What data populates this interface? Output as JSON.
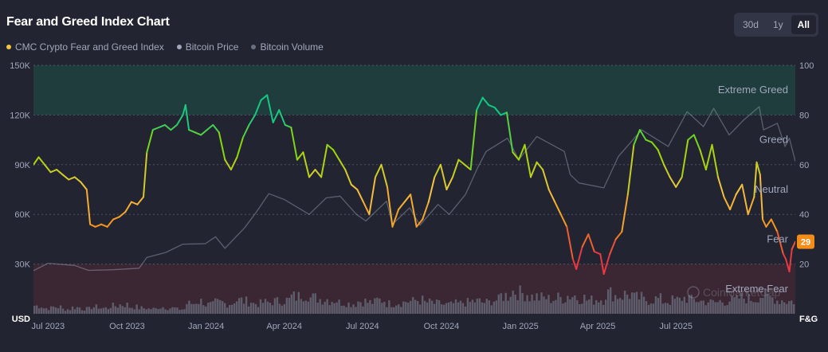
{
  "header": {
    "title": "Fear and Greed Index Chart",
    "ranges": [
      "30d",
      "1y",
      "All"
    ],
    "active_range": "All"
  },
  "legend": [
    {
      "label": "CMC Crypto Fear and Greed Index",
      "color": "#f6c343"
    },
    {
      "label": "Bitcoin Price",
      "color": "#a1a7bb"
    },
    {
      "label": "Bitcoin Volume",
      "color": "#6b7080"
    }
  ],
  "watermark": "CoinMarketCap",
  "current_value": 29,
  "chart_data": {
    "type": "line",
    "x_range": [
      "2023-06-14",
      "2025-11-17"
    ],
    "x_ticks": [
      {
        "date": "2023-07-01",
        "label": "Jul 2023"
      },
      {
        "date": "2023-10-01",
        "label": "Oct 2023"
      },
      {
        "date": "2024-01-01",
        "label": "Jan 2024"
      },
      {
        "date": "2024-04-01",
        "label": "Apr 2024"
      },
      {
        "date": "2024-07-01",
        "label": "Jul 2024"
      },
      {
        "date": "2024-10-01",
        "label": "Oct 2024"
      },
      {
        "date": "2025-01-01",
        "label": "Jan 2025"
      },
      {
        "date": "2025-04-01",
        "label": "Apr 2025"
      },
      {
        "date": "2025-07-01",
        "label": "Jul 2025"
      }
    ],
    "left_axis": {
      "unit": "USD",
      "ylim": [
        0,
        150000
      ],
      "ticks": [
        30000,
        60000,
        90000,
        120000,
        150000
      ],
      "tick_labels": [
        "30K",
        "60K",
        "90K",
        "120K",
        "150K"
      ]
    },
    "right_axis": {
      "unit": "F&G",
      "ylim": [
        0,
        100
      ],
      "ticks": [
        20,
        40,
        60,
        80,
        100
      ],
      "tick_labels": [
        "20",
        "40",
        "60",
        "80",
        "100"
      ]
    },
    "zones": [
      {
        "label": "Extreme Greed",
        "from": 80,
        "to": 100,
        "color": "#16c784"
      },
      {
        "label": "Greed",
        "at": 70
      },
      {
        "label": "Neutral",
        "at": 50
      },
      {
        "label": "Fear",
        "at": 30
      },
      {
        "label": "Extreme Fear",
        "from": 0,
        "to": 20,
        "color": "#ea3943"
      }
    ],
    "grid": true,
    "series": [
      {
        "name": "CMC Crypto Fear and Greed Index",
        "axis": "right",
        "points": [
          [
            "2023-06-14",
            60
          ],
          [
            "2023-06-20",
            63
          ],
          [
            "2023-06-27",
            60
          ],
          [
            "2023-07-04",
            57
          ],
          [
            "2023-07-11",
            58
          ],
          [
            "2023-07-18",
            56
          ],
          [
            "2023-07-25",
            54
          ],
          [
            "2023-08-01",
            55
          ],
          [
            "2023-08-08",
            53
          ],
          [
            "2023-08-15",
            50
          ],
          [
            "2023-08-19",
            36
          ],
          [
            "2023-08-25",
            35
          ],
          [
            "2023-09-01",
            36
          ],
          [
            "2023-09-08",
            35
          ],
          [
            "2023-09-15",
            38
          ],
          [
            "2023-09-22",
            39
          ],
          [
            "2023-09-29",
            41
          ],
          [
            "2023-10-06",
            45
          ],
          [
            "2023-10-13",
            44
          ],
          [
            "2023-10-20",
            47
          ],
          [
            "2023-10-24",
            65
          ],
          [
            "2023-10-31",
            74
          ],
          [
            "2023-11-07",
            75
          ],
          [
            "2023-11-14",
            76
          ],
          [
            "2023-11-21",
            74
          ],
          [
            "2023-11-28",
            76
          ],
          [
            "2023-12-05",
            80
          ],
          [
            "2023-12-08",
            84
          ],
          [
            "2023-12-12",
            74
          ],
          [
            "2023-12-19",
            73
          ],
          [
            "2023-12-26",
            72
          ],
          [
            "2024-01-02",
            74
          ],
          [
            "2024-01-09",
            76
          ],
          [
            "2024-01-16",
            73
          ],
          [
            "2024-01-23",
            62
          ],
          [
            "2024-01-30",
            58
          ],
          [
            "2024-02-06",
            63
          ],
          [
            "2024-02-13",
            71
          ],
          [
            "2024-02-20",
            76
          ],
          [
            "2024-02-27",
            80
          ],
          [
            "2024-03-05",
            86
          ],
          [
            "2024-03-12",
            88
          ],
          [
            "2024-03-19",
            77
          ],
          [
            "2024-03-26",
            82
          ],
          [
            "2024-04-02",
            76
          ],
          [
            "2024-04-09",
            75
          ],
          [
            "2024-04-16",
            62
          ],
          [
            "2024-04-23",
            65
          ],
          [
            "2024-04-30",
            55
          ],
          [
            "2024-05-07",
            58
          ],
          [
            "2024-05-14",
            55
          ],
          [
            "2024-05-21",
            68
          ],
          [
            "2024-05-28",
            66
          ],
          [
            "2024-06-04",
            62
          ],
          [
            "2024-06-11",
            58
          ],
          [
            "2024-06-18",
            52
          ],
          [
            "2024-06-25",
            50
          ],
          [
            "2024-07-02",
            45
          ],
          [
            "2024-07-09",
            40
          ],
          [
            "2024-07-16",
            55
          ],
          [
            "2024-07-23",
            60
          ],
          [
            "2024-07-30",
            51
          ],
          [
            "2024-08-05",
            35
          ],
          [
            "2024-08-12",
            42
          ],
          [
            "2024-08-19",
            45
          ],
          [
            "2024-08-26",
            48
          ],
          [
            "2024-09-02",
            35
          ],
          [
            "2024-09-09",
            38
          ],
          [
            "2024-09-16",
            45
          ],
          [
            "2024-09-23",
            55
          ],
          [
            "2024-09-30",
            60
          ],
          [
            "2024-10-07",
            50
          ],
          [
            "2024-10-14",
            55
          ],
          [
            "2024-10-21",
            62
          ],
          [
            "2024-10-28",
            60
          ],
          [
            "2024-11-04",
            58
          ],
          [
            "2024-11-11",
            82
          ],
          [
            "2024-11-18",
            87
          ],
          [
            "2024-11-25",
            84
          ],
          [
            "2024-12-02",
            83
          ],
          [
            "2024-12-09",
            80
          ],
          [
            "2024-12-16",
            81
          ],
          [
            "2024-12-23",
            65
          ],
          [
            "2024-12-30",
            62
          ],
          [
            "2025-01-06",
            68
          ],
          [
            "2025-01-13",
            55
          ],
          [
            "2025-01-20",
            61
          ],
          [
            "2025-01-27",
            58
          ],
          [
            "2025-02-03",
            50
          ],
          [
            "2025-02-10",
            45
          ],
          [
            "2025-02-17",
            40
          ],
          [
            "2025-02-24",
            35
          ],
          [
            "2025-03-03",
            22
          ],
          [
            "2025-03-07",
            18
          ],
          [
            "2025-03-14",
            27
          ],
          [
            "2025-03-21",
            32
          ],
          [
            "2025-03-28",
            25
          ],
          [
            "2025-04-04",
            24
          ],
          [
            "2025-04-08",
            16
          ],
          [
            "2025-04-15",
            24
          ],
          [
            "2025-04-22",
            30
          ],
          [
            "2025-04-29",
            33
          ],
          [
            "2025-05-06",
            48
          ],
          [
            "2025-05-13",
            68
          ],
          [
            "2025-05-20",
            74
          ],
          [
            "2025-05-27",
            70
          ],
          [
            "2025-06-03",
            69
          ],
          [
            "2025-06-10",
            66
          ],
          [
            "2025-06-17",
            60
          ],
          [
            "2025-06-24",
            55
          ],
          [
            "2025-07-01",
            51
          ],
          [
            "2025-07-08",
            55
          ],
          [
            "2025-07-15",
            70
          ],
          [
            "2025-07-22",
            72
          ],
          [
            "2025-07-29",
            66
          ],
          [
            "2025-08-05",
            58
          ],
          [
            "2025-08-12",
            68
          ],
          [
            "2025-08-19",
            55
          ],
          [
            "2025-08-26",
            47
          ],
          [
            "2025-09-02",
            42
          ],
          [
            "2025-09-09",
            48
          ],
          [
            "2025-09-16",
            52
          ],
          [
            "2025-09-23",
            40
          ],
          [
            "2025-09-30",
            47
          ],
          [
            "2025-10-03",
            61
          ],
          [
            "2025-10-07",
            56
          ],
          [
            "2025-10-10",
            38
          ],
          [
            "2025-10-14",
            35
          ],
          [
            "2025-10-20",
            38
          ],
          [
            "2025-10-27",
            33
          ],
          [
            "2025-11-03",
            24
          ],
          [
            "2025-11-06",
            22
          ],
          [
            "2025-11-10",
            17
          ],
          [
            "2025-11-13",
            26
          ],
          [
            "2025-11-17",
            29
          ]
        ]
      },
      {
        "name": "Bitcoin Price",
        "axis": "left",
        "color": "#a1a7bb",
        "points": [
          [
            "2023-06-14",
            26000
          ],
          [
            "2023-07-01",
            30500
          ],
          [
            "2023-08-01",
            29200
          ],
          [
            "2023-08-17",
            26200
          ],
          [
            "2023-09-15",
            26600
          ],
          [
            "2023-10-15",
            27500
          ],
          [
            "2023-10-24",
            34000
          ],
          [
            "2023-11-15",
            37000
          ],
          [
            "2023-12-05",
            42000
          ],
          [
            "2023-12-31",
            42300
          ],
          [
            "2024-01-12",
            46500
          ],
          [
            "2024-01-23",
            39500
          ],
          [
            "2024-02-15",
            52000
          ],
          [
            "2024-02-28",
            61000
          ],
          [
            "2024-03-14",
            72500
          ],
          [
            "2024-04-01",
            69000
          ],
          [
            "2024-04-30",
            60000
          ],
          [
            "2024-05-20",
            70000
          ],
          [
            "2024-06-05",
            71000
          ],
          [
            "2024-06-24",
            60000
          ],
          [
            "2024-07-05",
            56000
          ],
          [
            "2024-07-29",
            68000
          ],
          [
            "2024-08-05",
            54000
          ],
          [
            "2024-08-25",
            64000
          ],
          [
            "2024-09-06",
            53500
          ],
          [
            "2024-09-27",
            66000
          ],
          [
            "2024-10-10",
            60000
          ],
          [
            "2024-10-29",
            72000
          ],
          [
            "2024-11-12",
            88000
          ],
          [
            "2024-11-22",
            98000
          ],
          [
            "2024-12-17",
            106000
          ],
          [
            "2024-12-30",
            93000
          ],
          [
            "2025-01-20",
            107000
          ],
          [
            "2025-02-21",
            98000
          ],
          [
            "2025-02-28",
            84000
          ],
          [
            "2025-03-10",
            79000
          ],
          [
            "2025-04-08",
            76000
          ],
          [
            "2025-04-25",
            95000
          ],
          [
            "2025-05-22",
            111000
          ],
          [
            "2025-06-22",
            101000
          ],
          [
            "2025-07-14",
            122000
          ],
          [
            "2025-08-02",
            113000
          ],
          [
            "2025-08-14",
            124000
          ],
          [
            "2025-09-01",
            108000
          ],
          [
            "2025-09-18",
            117000
          ],
          [
            "2025-10-06",
            125000
          ],
          [
            "2025-10-11",
            111000
          ],
          [
            "2025-10-27",
            115000
          ],
          [
            "2025-11-05",
            101000
          ],
          [
            "2025-11-10",
            106000
          ],
          [
            "2025-11-17",
            92000
          ]
        ]
      },
      {
        "name": "Bitcoin Volume",
        "axis": "left",
        "color": "#6b7080",
        "relative_volume": [
          0.35,
          0.25,
          0.3,
          0.2,
          0.28,
          0.22,
          0.3,
          0.25,
          0.35,
          0.4,
          0.3,
          0.25,
          0.22,
          0.3,
          0.25,
          0.2,
          0.45,
          0.55,
          0.4,
          0.5,
          0.45,
          0.6,
          0.55,
          0.45,
          0.5,
          0.55,
          0.6,
          0.75,
          0.9,
          0.7,
          0.65,
          0.6,
          0.5,
          0.45,
          0.55,
          0.5,
          0.6,
          0.45,
          0.5,
          0.55,
          0.6,
          0.5,
          0.45,
          0.4,
          0.45,
          0.5,
          0.55,
          0.5,
          0.6,
          0.8,
          1.0,
          0.9,
          0.75,
          0.7,
          0.65,
          0.7,
          0.8,
          0.7,
          0.6,
          0.65,
          0.9,
          0.8,
          0.85,
          0.7,
          0.6,
          0.65,
          0.55,
          0.6,
          0.7,
          0.6,
          0.55,
          0.5,
          0.55,
          0.6,
          0.7,
          0.65,
          0.8,
          0.7,
          0.6,
          0.55
        ]
      }
    ]
  }
}
